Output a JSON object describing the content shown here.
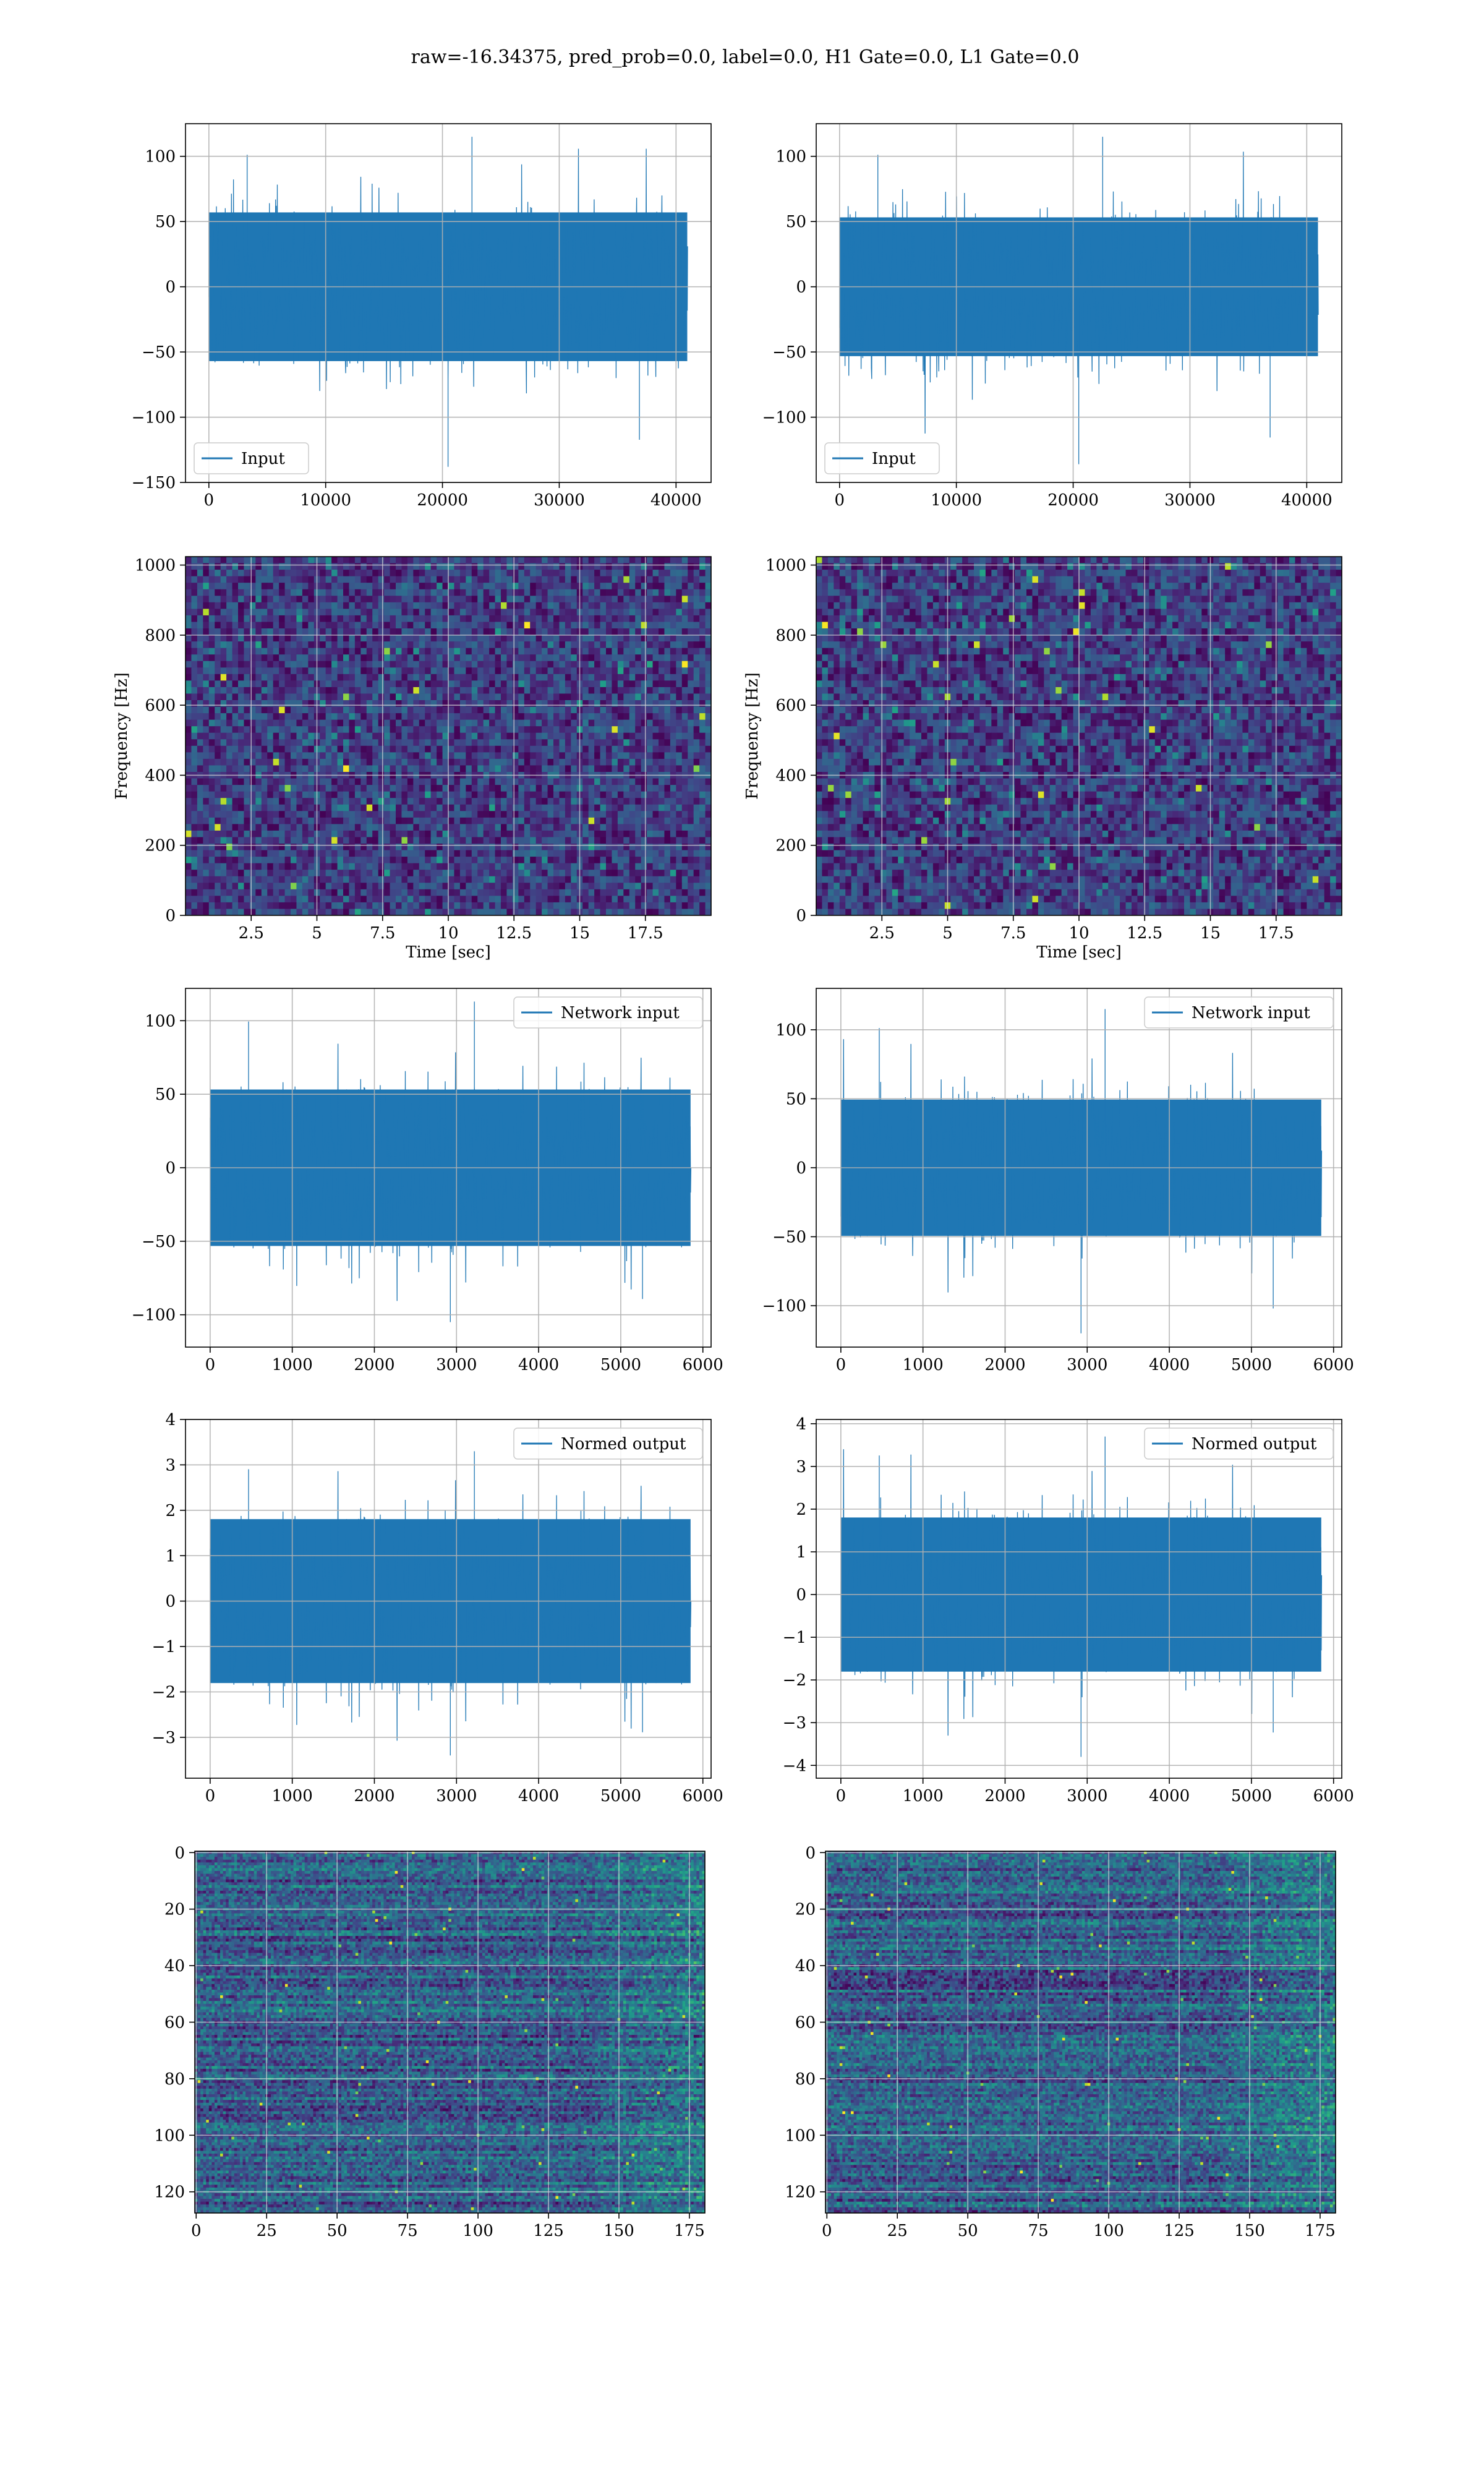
{
  "figure": {
    "title": "raw=-16.34375, pred_prob=0.0, label=0.0, H1 Gate=0.0, L1 Gate=0.0"
  },
  "colors": {
    "line": "#1f77b4",
    "grid": "#b0b0b0",
    "spine": "#000000"
  },
  "chart_data": [
    {
      "id": "r1c1",
      "type": "line",
      "legend": "Input",
      "legend_loc": "lower-left",
      "xlim": [
        -2000,
        43000
      ],
      "ylim": [
        -150,
        125
      ],
      "xticks": [
        0,
        10000,
        20000,
        30000,
        40000
      ],
      "yticks": [
        -150,
        -100,
        -50,
        0,
        50,
        100
      ],
      "x_range": [
        0,
        40960
      ],
      "amplitude": 30,
      "extremes": [
        -138,
        115
      ],
      "points": 700,
      "seed": 11
    },
    {
      "id": "r1c2",
      "type": "line",
      "legend": "Input",
      "legend_loc": "lower-left",
      "xlim": [
        -2000,
        43000
      ],
      "ylim": [
        -150,
        125
      ],
      "xticks": [
        0,
        10000,
        20000,
        30000,
        40000
      ],
      "yticks": [
        -100,
        -50,
        0,
        50,
        100
      ],
      "x_range": [
        0,
        40960
      ],
      "amplitude": 28,
      "extremes": [
        -136,
        115
      ],
      "points": 700,
      "seed": 23
    },
    {
      "id": "r2c1",
      "type": "heatmap",
      "xlabel": "Time [sec]",
      "ylabel": "Frequency [Hz]",
      "xlim": [
        0,
        20
      ],
      "ylim": [
        0,
        1024
      ],
      "xticks": [
        2.5,
        5.0,
        7.5,
        10.0,
        12.5,
        15.0,
        17.5
      ],
      "yticks": [
        0,
        200,
        400,
        600,
        800,
        1000
      ],
      "cols": 90,
      "rows": 55,
      "seed": 5,
      "colormap": "viridis"
    },
    {
      "id": "r2c2",
      "type": "heatmap",
      "xlabel": "Time [sec]",
      "ylabel": "Frequency [Hz]",
      "xlim": [
        0,
        20
      ],
      "ylim": [
        0,
        1024
      ],
      "xticks": [
        2.5,
        5.0,
        7.5,
        10.0,
        12.5,
        15.0,
        17.5
      ],
      "yticks": [
        0,
        200,
        400,
        600,
        800,
        1000
      ],
      "cols": 90,
      "rows": 55,
      "seed": 9,
      "colormap": "viridis"
    },
    {
      "id": "r3c1",
      "type": "line",
      "legend": "Network input",
      "legend_loc": "upper-right",
      "xlim": [
        -300,
        6100
      ],
      "ylim": [
        -122,
        122
      ],
      "xticks": [
        0,
        1000,
        2000,
        3000,
        4000,
        5000,
        6000
      ],
      "yticks": [
        -100,
        -50,
        0,
        50,
        100
      ],
      "x_range": [
        0,
        5850
      ],
      "amplitude": 28,
      "extremes": [
        -105,
        113
      ],
      "points": 700,
      "seed": 31
    },
    {
      "id": "r3c2",
      "type": "line",
      "legend": "Network input",
      "legend_loc": "upper-right",
      "xlim": [
        -300,
        6100
      ],
      "ylim": [
        -130,
        130
      ],
      "xticks": [
        0,
        1000,
        2000,
        3000,
        4000,
        5000,
        6000
      ],
      "yticks": [
        -100,
        -50,
        0,
        50,
        100
      ],
      "x_range": [
        0,
        5850
      ],
      "amplitude": 26,
      "extremes": [
        -120,
        115
      ],
      "points": 700,
      "seed": 47
    },
    {
      "id": "r4c1",
      "type": "line",
      "legend": "Normed output",
      "legend_loc": "upper-right",
      "xlim": [
        -300,
        6100
      ],
      "ylim": [
        -3.9,
        4.0
      ],
      "xticks": [
        0,
        1000,
        2000,
        3000,
        4000,
        5000,
        6000
      ],
      "yticks": [
        -3,
        -2,
        -1,
        0,
        1,
        2,
        3,
        4
      ],
      "x_range": [
        0,
        5850
      ],
      "amplitude": 0.95,
      "extremes": [
        -3.4,
        3.3
      ],
      "points": 700,
      "seed": 31
    },
    {
      "id": "r4c2",
      "type": "line",
      "legend": "Normed output",
      "legend_loc": "upper-right",
      "xlim": [
        -300,
        6100
      ],
      "ylim": [
        -4.3,
        4.1
      ],
      "xticks": [
        0,
        1000,
        2000,
        3000,
        4000,
        5000,
        6000
      ],
      "yticks": [
        -4,
        -3,
        -2,
        -1,
        0,
        1,
        2,
        3,
        4
      ],
      "x_range": [
        0,
        5850
      ],
      "amplitude": 0.95,
      "extremes": [
        -3.8,
        3.7
      ],
      "points": 700,
      "seed": 47
    },
    {
      "id": "r5c1",
      "type": "heatmap",
      "xlim": [
        -0.5,
        180.5
      ],
      "ylim": [
        127.5,
        -0.5
      ],
      "xticks": [
        0,
        25,
        50,
        75,
        100,
        125,
        150,
        175
      ],
      "yticks": [
        0,
        20,
        40,
        60,
        80,
        100,
        120
      ],
      "cols": 181,
      "rows": 128,
      "seed": 71,
      "colormap": "viridis",
      "row_bands": true
    },
    {
      "id": "r5c2",
      "type": "heatmap",
      "xlim": [
        -0.5,
        180.5
      ],
      "ylim": [
        127.5,
        -0.5
      ],
      "xticks": [
        0,
        25,
        50,
        75,
        100,
        125,
        150,
        175
      ],
      "yticks": [
        0,
        20,
        40,
        60,
        80,
        100,
        120
      ],
      "cols": 181,
      "rows": 128,
      "seed": 83,
      "colormap": "viridis",
      "row_bands": true
    }
  ]
}
